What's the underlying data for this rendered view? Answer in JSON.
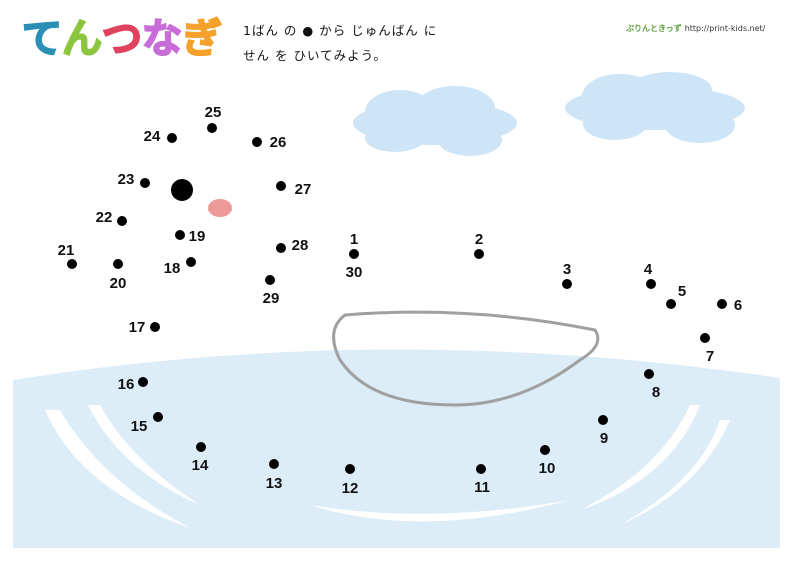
{
  "logo": {
    "text": "てんつなぎ",
    "chars": [
      "て",
      "ん",
      "つ",
      "な",
      "ぎ"
    ],
    "colors": [
      "#2b8fb3",
      "#8cc63f",
      "#e0435f",
      "#c86dd7",
      "#f5a12c"
    ]
  },
  "instructions": {
    "line1": "1ばん の ● から じゅんばん に",
    "line2": "せん を ひいてみよう。"
  },
  "brand": {
    "name": "ぷりんときっず",
    "url": "http://print-kids.net/"
  },
  "dots": {
    "labels": [
      "1",
      "2",
      "3",
      "4",
      "5",
      "6",
      "7",
      "8",
      "9",
      "10",
      "11",
      "12",
      "13",
      "14",
      "15",
      "16",
      "17",
      "18",
      "19",
      "20",
      "21",
      "22",
      "23",
      "24",
      "25",
      "26",
      "27",
      "28",
      "29",
      "30"
    ]
  },
  "colors": {
    "sea": "#dcedf8",
    "cloud": "#cde5f6",
    "cheek": "#ee9a98",
    "outline": "#a0a0a0",
    "dot": "#000000"
  }
}
